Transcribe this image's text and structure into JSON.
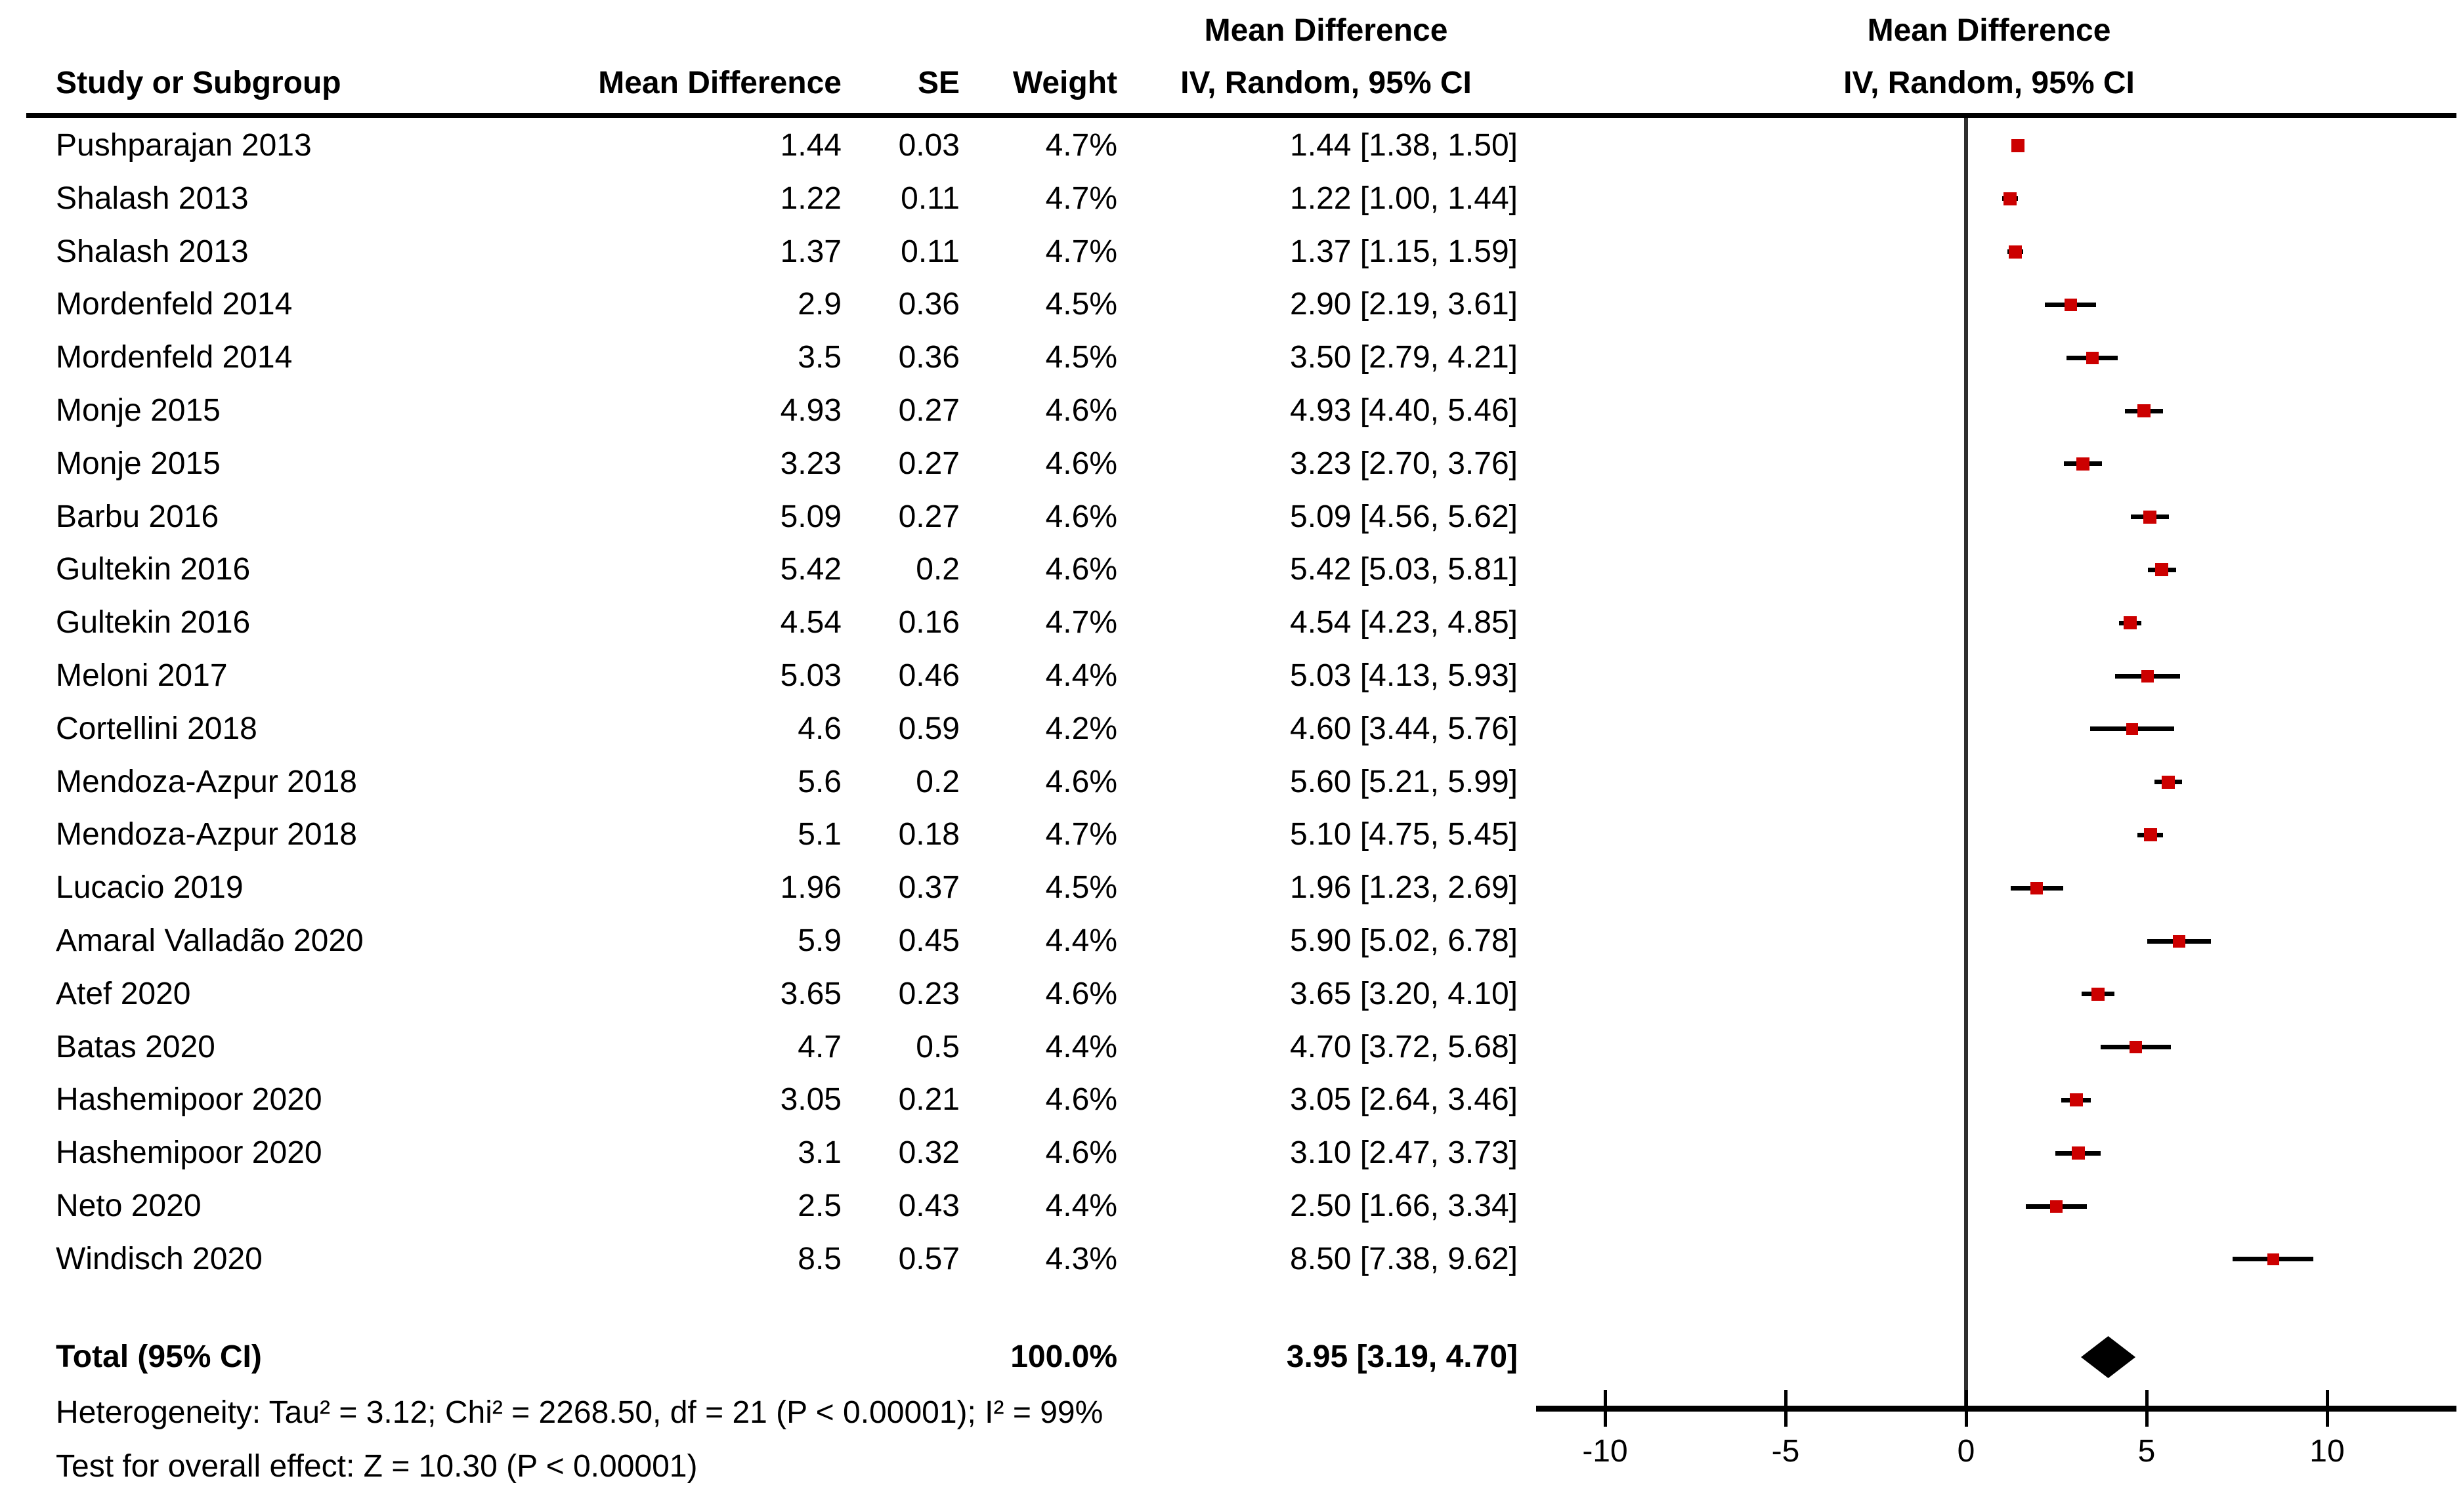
{
  "chart_data": {
    "type": "forest",
    "table_group_header": "Mean Difference",
    "columns": {
      "study": "Study or Subgroup",
      "md": "Mean Difference",
      "se": "SE",
      "weight": "Weight",
      "ci": "IV, Random, 95% CI"
    },
    "plot_header": {
      "line1": "Mean Difference",
      "line2": "IV, Random, 95% CI"
    },
    "studies": [
      {
        "name": "Pushparajan 2013",
        "md_text": "1.44",
        "se_text": "0.03",
        "weight_text": "4.7%",
        "ci_text": "1.44 [1.38, 1.50]",
        "est": 1.44,
        "lo": 1.38,
        "hi": 1.5,
        "weight": 4.7
      },
      {
        "name": "Shalash 2013",
        "md_text": "1.22",
        "se_text": "0.11",
        "weight_text": "4.7%",
        "ci_text": "1.22 [1.00, 1.44]",
        "est": 1.22,
        "lo": 1.0,
        "hi": 1.44,
        "weight": 4.7
      },
      {
        "name": "Shalash 2013",
        "md_text": "1.37",
        "se_text": "0.11",
        "weight_text": "4.7%",
        "ci_text": "1.37 [1.15, 1.59]",
        "est": 1.37,
        "lo": 1.15,
        "hi": 1.59,
        "weight": 4.7
      },
      {
        "name": "Mordenfeld 2014",
        "md_text": "2.9",
        "se_text": "0.36",
        "weight_text": "4.5%",
        "ci_text": "2.90 [2.19, 3.61]",
        "est": 2.9,
        "lo": 2.19,
        "hi": 3.61,
        "weight": 4.5
      },
      {
        "name": "Mordenfeld 2014",
        "md_text": "3.5",
        "se_text": "0.36",
        "weight_text": "4.5%",
        "ci_text": "3.50 [2.79, 4.21]",
        "est": 3.5,
        "lo": 2.79,
        "hi": 4.21,
        "weight": 4.5
      },
      {
        "name": "Monje 2015",
        "md_text": "4.93",
        "se_text": "0.27",
        "weight_text": "4.6%",
        "ci_text": "4.93 [4.40, 5.46]",
        "est": 4.93,
        "lo": 4.4,
        "hi": 5.46,
        "weight": 4.6
      },
      {
        "name": "Monje 2015",
        "md_text": "3.23",
        "se_text": "0.27",
        "weight_text": "4.6%",
        "ci_text": "3.23 [2.70, 3.76]",
        "est": 3.23,
        "lo": 2.7,
        "hi": 3.76,
        "weight": 4.6
      },
      {
        "name": "Barbu 2016",
        "md_text": "5.09",
        "se_text": "0.27",
        "weight_text": "4.6%",
        "ci_text": "5.09 [4.56, 5.62]",
        "est": 5.09,
        "lo": 4.56,
        "hi": 5.62,
        "weight": 4.6
      },
      {
        "name": "Gultekin 2016",
        "md_text": "5.42",
        "se_text": "0.2",
        "weight_text": "4.6%",
        "ci_text": "5.42 [5.03, 5.81]",
        "est": 5.42,
        "lo": 5.03,
        "hi": 5.81,
        "weight": 4.6
      },
      {
        "name": "Gultekin 2016",
        "md_text": "4.54",
        "se_text": "0.16",
        "weight_text": "4.7%",
        "ci_text": "4.54 [4.23, 4.85]",
        "est": 4.54,
        "lo": 4.23,
        "hi": 4.85,
        "weight": 4.7
      },
      {
        "name": "Meloni 2017",
        "md_text": "5.03",
        "se_text": "0.46",
        "weight_text": "4.4%",
        "ci_text": "5.03 [4.13, 5.93]",
        "est": 5.03,
        "lo": 4.13,
        "hi": 5.93,
        "weight": 4.4
      },
      {
        "name": "Cortellini 2018",
        "md_text": "4.6",
        "se_text": "0.59",
        "weight_text": "4.2%",
        "ci_text": "4.60 [3.44, 5.76]",
        "est": 4.6,
        "lo": 3.44,
        "hi": 5.76,
        "weight": 4.2
      },
      {
        "name": "Mendoza-Azpur 2018",
        "md_text": "5.6",
        "se_text": "0.2",
        "weight_text": "4.6%",
        "ci_text": "5.60 [5.21, 5.99]",
        "est": 5.6,
        "lo": 5.21,
        "hi": 5.99,
        "weight": 4.6
      },
      {
        "name": "Mendoza-Azpur 2018",
        "md_text": "5.1",
        "se_text": "0.18",
        "weight_text": "4.7%",
        "ci_text": "5.10 [4.75, 5.45]",
        "est": 5.1,
        "lo": 4.75,
        "hi": 5.45,
        "weight": 4.7
      },
      {
        "name": "Lucacio 2019",
        "md_text": "1.96",
        "se_text": "0.37",
        "weight_text": "4.5%",
        "ci_text": "1.96 [1.23, 2.69]",
        "est": 1.96,
        "lo": 1.23,
        "hi": 2.69,
        "weight": 4.5
      },
      {
        "name": "Amaral Valladão 2020",
        "md_text": "5.9",
        "se_text": "0.45",
        "weight_text": "4.4%",
        "ci_text": "5.90 [5.02, 6.78]",
        "est": 5.9,
        "lo": 5.02,
        "hi": 6.78,
        "weight": 4.4
      },
      {
        "name": "Atef 2020",
        "md_text": "3.65",
        "se_text": "0.23",
        "weight_text": "4.6%",
        "ci_text": "3.65 [3.20, 4.10]",
        "est": 3.65,
        "lo": 3.2,
        "hi": 4.1,
        "weight": 4.6
      },
      {
        "name": "Batas 2020",
        "md_text": "4.7",
        "se_text": "0.5",
        "weight_text": "4.4%",
        "ci_text": "4.70 [3.72, 5.68]",
        "est": 4.7,
        "lo": 3.72,
        "hi": 5.68,
        "weight": 4.4
      },
      {
        "name": "Hashemipoor 2020",
        "md_text": "3.05",
        "se_text": "0.21",
        "weight_text": "4.6%",
        "ci_text": "3.05 [2.64, 3.46]",
        "est": 3.05,
        "lo": 2.64,
        "hi": 3.46,
        "weight": 4.6
      },
      {
        "name": "Hashemipoor 2020",
        "md_text": "3.1",
        "se_text": "0.32",
        "weight_text": "4.6%",
        "ci_text": "3.10 [2.47, 3.73]",
        "est": 3.1,
        "lo": 2.47,
        "hi": 3.73,
        "weight": 4.6
      },
      {
        "name": "Neto 2020",
        "md_text": "2.5",
        "se_text": "0.43",
        "weight_text": "4.4%",
        "ci_text": "2.50 [1.66, 3.34]",
        "est": 2.5,
        "lo": 1.66,
        "hi": 3.34,
        "weight": 4.4
      },
      {
        "name": "Windisch 2020",
        "md_text": "8.5",
        "se_text": "0.57",
        "weight_text": "4.3%",
        "ci_text": "8.50 [7.38, 9.62]",
        "est": 8.5,
        "lo": 7.38,
        "hi": 9.62,
        "weight": 4.3
      }
    ],
    "total": {
      "label": "Total (95% CI)",
      "weight_text": "100.0%",
      "ci_text": "3.95 [3.19, 4.70]",
      "est": 3.95,
      "lo": 3.19,
      "hi": 4.7
    },
    "footnotes": {
      "heterogeneity": "Heterogeneity: Tau² = 3.12; Chi² = 2268.50, df = 21 (P < 0.00001); I² = 99%",
      "overall_effect": "Test for overall effect: Z = 10.30 (P < 0.00001)"
    },
    "axis": {
      "ticks": [
        -10,
        -5,
        0,
        5,
        10
      ],
      "tick_labels": [
        "-10",
        "-5",
        "0",
        "5",
        "10"
      ],
      "range": [
        -12,
        13.5
      ],
      "grid": false
    },
    "colors": {
      "marker": "#cc0000",
      "ci_line": "#000000",
      "diamond": "#000000",
      "zero_line": "#2e2e2e",
      "axis_line": "#000000"
    }
  }
}
